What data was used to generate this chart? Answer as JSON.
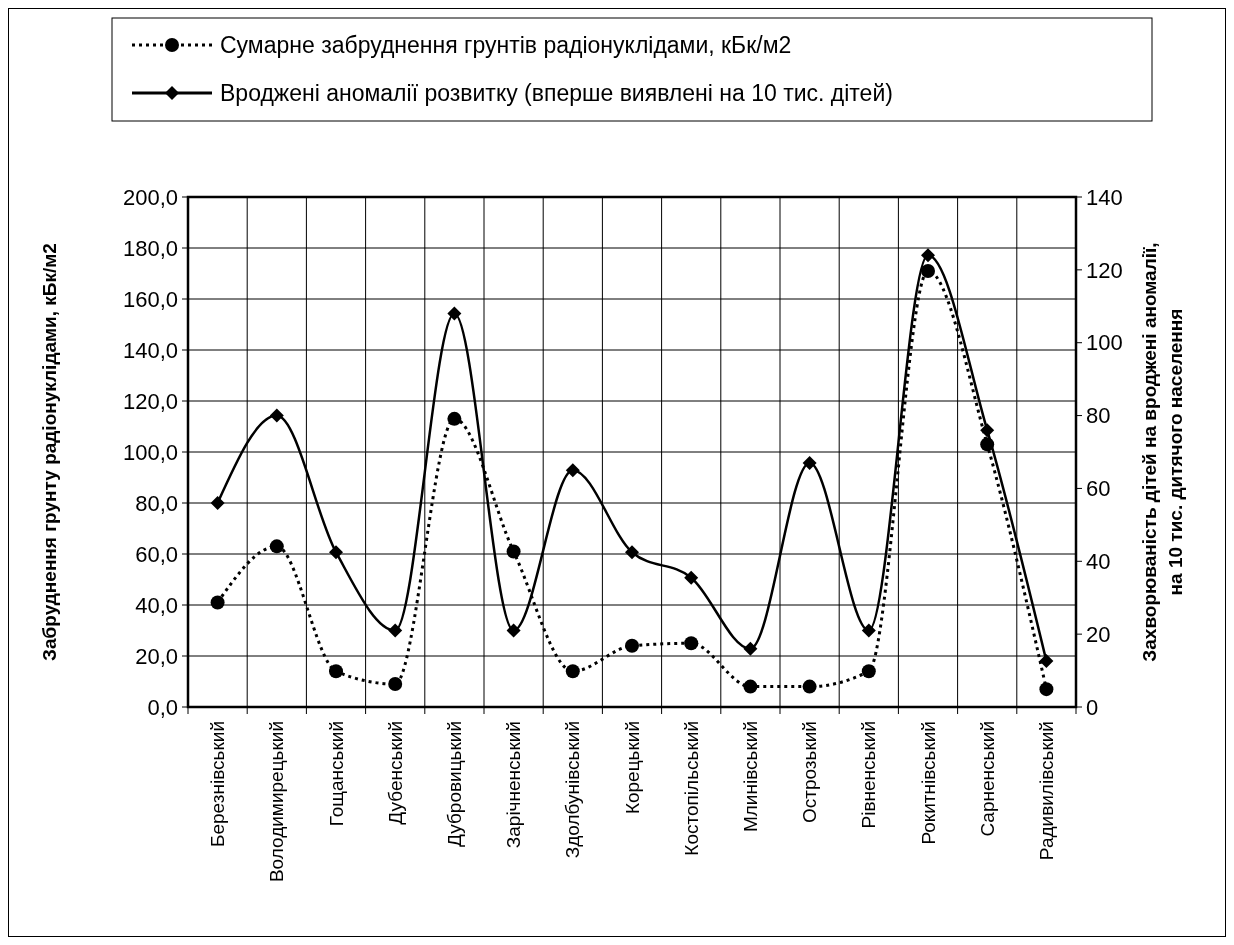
{
  "chart_data": {
    "type": "line",
    "ylabel": "Забруднення грунту радіонуклідами, кБк/м2",
    "y2label": "Захворюваність дітей на вроджені аномалії,\nна 10 тис. дитячого населення",
    "categories": [
      "Березнівський",
      "Володимирецький",
      "Гощанський",
      "Дубенський",
      "Дубровицький",
      "Зарічненський",
      "Здолбунівський",
      "Корецький",
      "Костопільський",
      "Млинівський",
      "Острозький",
      "Рівненський",
      "Рокитнівський",
      "Сарненський",
      "Радивилівський"
    ],
    "series": [
      {
        "name": "Сумарне забруднення грунтів радіонуклідами, кБк/м2",
        "color": "#000000",
        "marker": "circle",
        "line_style": "dotted",
        "values": [
          41,
          63,
          14,
          9,
          113,
          61,
          14,
          24,
          25,
          8,
          8,
          14,
          171,
          103,
          7
        ]
      },
      {
        "name": "Вроджені аномалії розвитку (вперше виявлені на 10 тис. дітей)",
        "color": "#000000",
        "marker": "diamond",
        "line_style": "solid",
        "axis": "y2",
        "values": [
          56,
          80,
          42.5,
          21,
          108,
          21,
          65,
          42.5,
          35.5,
          16,
          67,
          21,
          124,
          76,
          12.6
        ]
      }
    ],
    "ylim": [
      0,
      200
    ],
    "yticks": [
      {
        "value": 0,
        "label": "0,0"
      },
      {
        "value": 20,
        "label": "20,0"
      },
      {
        "value": 40,
        "label": "40,0"
      },
      {
        "value": 60,
        "label": "60,0"
      },
      {
        "value": 80,
        "label": "80,0"
      },
      {
        "value": 100,
        "label": "100,0"
      },
      {
        "value": 120,
        "label": "120,0"
      },
      {
        "value": 140,
        "label": "140,0"
      },
      {
        "value": 160,
        "label": "160,0"
      },
      {
        "value": 180,
        "label": "180,0"
      },
      {
        "value": 200,
        "label": "200,0"
      }
    ],
    "y2lim": [
      0,
      140
    ],
    "y2ticks": [
      0,
      20,
      40,
      60,
      80,
      100,
      120,
      140
    ],
    "grid": true,
    "legend": "top"
  }
}
